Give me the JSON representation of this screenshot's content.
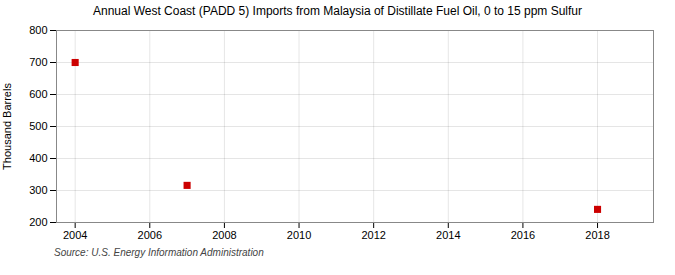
{
  "chart_data": {
    "type": "scatter",
    "title": "Annual West Coast (PADD 5) Imports from Malaysia of Distillate Fuel Oil, 0 to 15 ppm Sulfur",
    "ylabel": "Thousand Barrels",
    "source": "Source: U.S. Energy Information Administration",
    "x": [
      2004,
      2007,
      2018
    ],
    "values": [
      700,
      316,
      241
    ],
    "color": "#cc0000",
    "marker": "square",
    "xlim": [
      2003.5,
      2019.5
    ],
    "xticks": [
      2004,
      2006,
      2008,
      2010,
      2012,
      2014,
      2016,
      2018
    ],
    "ylim": [
      200,
      800
    ],
    "yticks": [
      200,
      300,
      400,
      500,
      600,
      700,
      800
    ],
    "grid": true
  }
}
